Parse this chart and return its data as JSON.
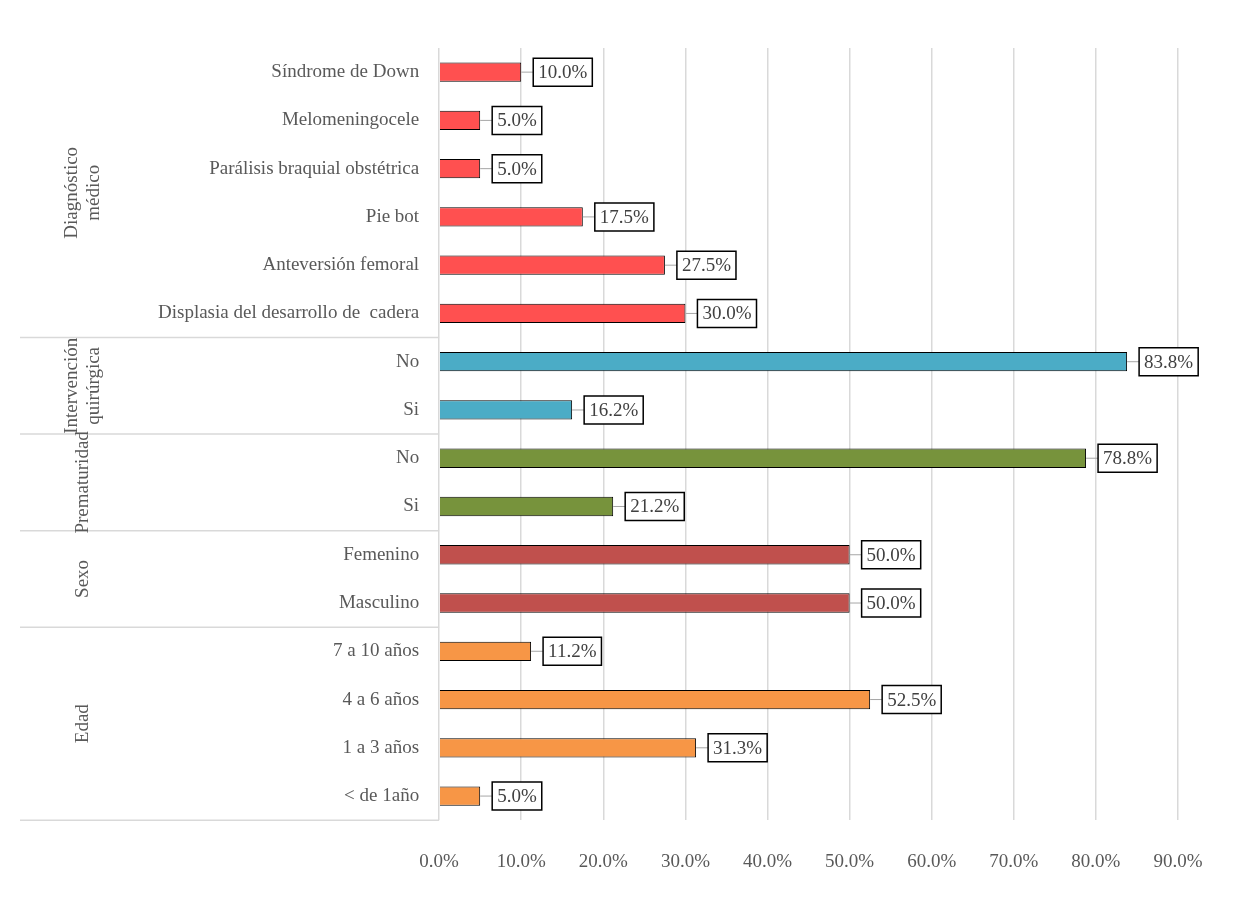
{
  "chart_data": {
    "type": "bar",
    "orientation": "horizontal",
    "categories": [
      "Síndrome de Down",
      "Melomeningocele",
      "Parálisis braquial obstétrica",
      "Pie bot",
      "Anteversión femoral",
      "Displasia del desarrollo de  cadera",
      "No",
      "Si",
      "No",
      "Si",
      "Femenino",
      "Masculino",
      "7 a 10 años",
      "4 a 6 años",
      "1 a 3 años",
      "< de 1año"
    ],
    "values": [
      10,
      5,
      5,
      17.5,
      27.5,
      30,
      83.8,
      16.2,
      78.8,
      21.2,
      50,
      50,
      11.2,
      52.5,
      31.3,
      5
    ],
    "value_labels": [
      "10.0%",
      "5.0%",
      "5.0%",
      "17.5%",
      "27.5%",
      "30.0%",
      "83.8%",
      "16.2%",
      "78.8%",
      "21.2%",
      "50.0%",
      "50.0%",
      "11.2%",
      "52.5%",
      "31.3%",
      "5.0%"
    ],
    "colors": [
      "#ff5050",
      "#ff5050",
      "#ff5050",
      "#ff5050",
      "#ff5050",
      "#ff5050",
      "#4bacc6",
      "#4bacc6",
      "#77933c",
      "#77933c",
      "#c0504d",
      "#c0504d",
      "#f79646",
      "#f79646",
      "#f79646",
      "#f79646"
    ],
    "annotations": [
      "Diagnóstico médico",
      "Intervención quirúrgica",
      "Prematuridad",
      "Sexo",
      "Edad"
    ],
    "xlim": [
      0,
      90
    ],
    "xticks": [
      {
        "value": 0,
        "label": "0.0%"
      },
      {
        "value": 10,
        "label": "10.0%"
      },
      {
        "value": 20,
        "label": "20.0%"
      },
      {
        "value": 30,
        "label": "30.0%"
      },
      {
        "value": 40,
        "label": "40.0%"
      },
      {
        "value": 50,
        "label": "50.0%"
      },
      {
        "value": 60,
        "label": "60.0%"
      },
      {
        "value": 70,
        "label": "70.0%"
      },
      {
        "value": 80,
        "label": "80.0%"
      },
      {
        "value": 90,
        "label": "90.0%"
      }
    ],
    "grid": "x",
    "legend": false
  }
}
